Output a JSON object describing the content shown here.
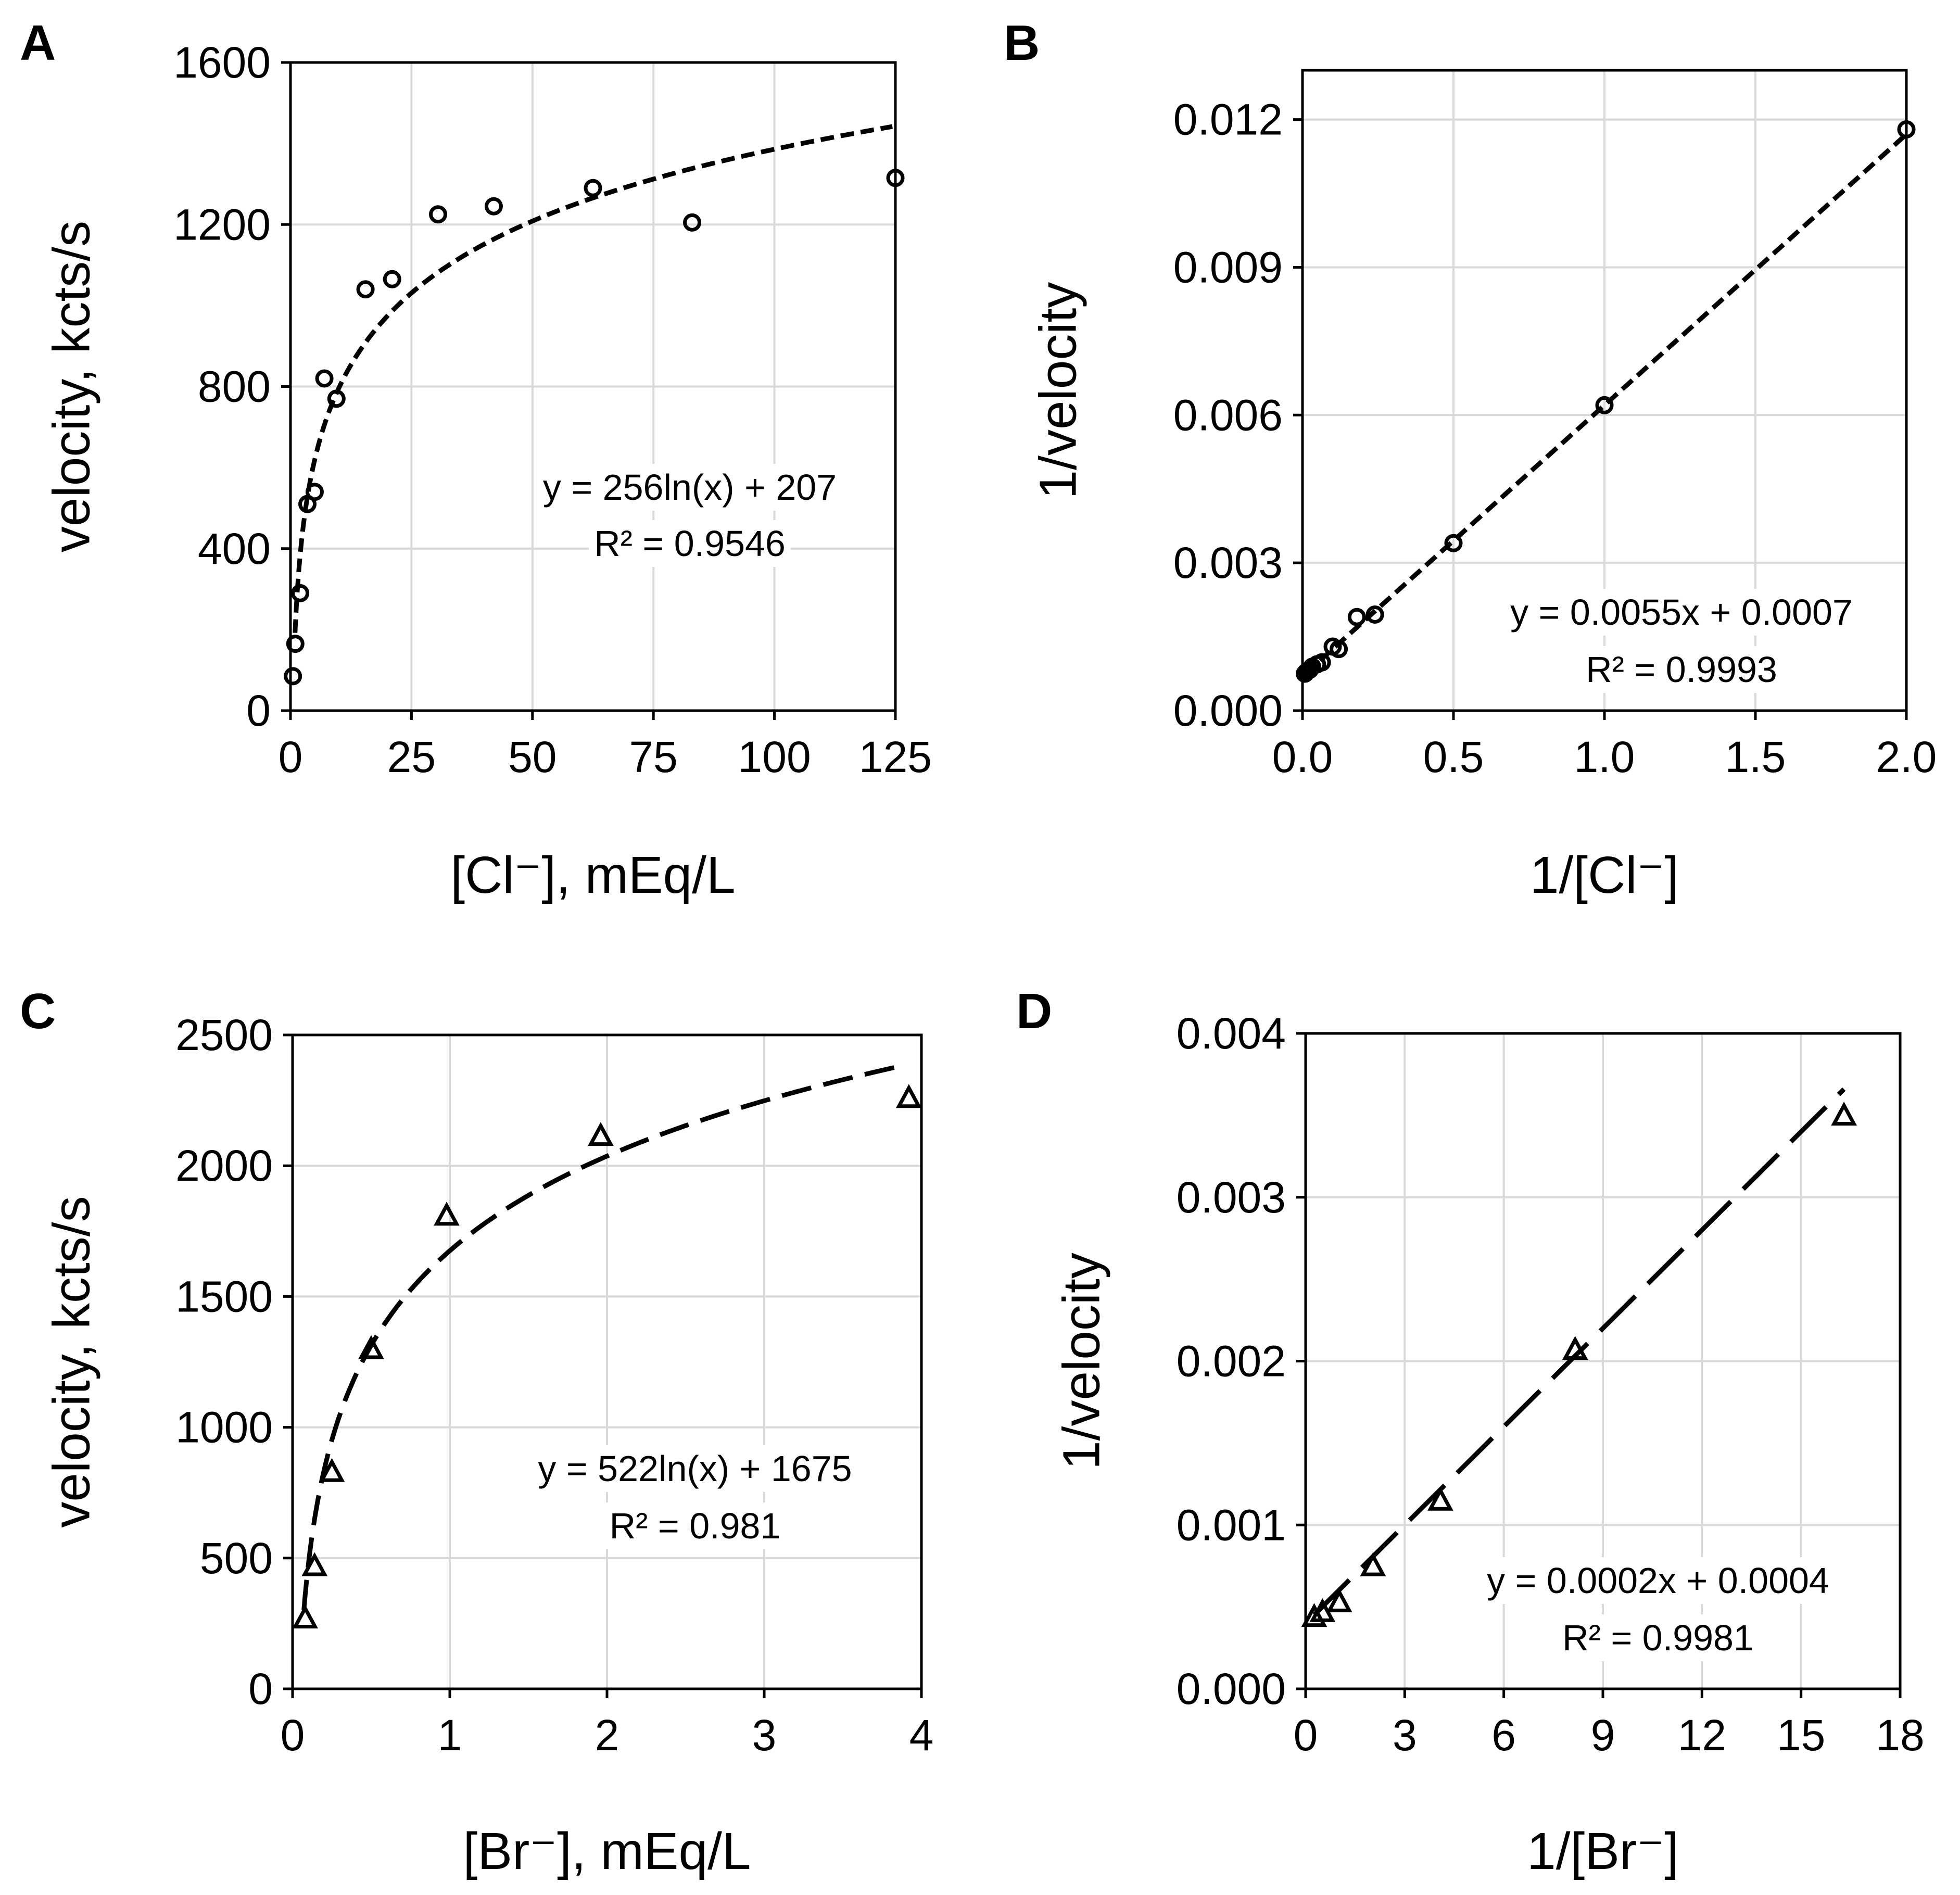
{
  "chart_data": [
    {
      "panel": "A",
      "type": "scatter",
      "marker": "circle",
      "trendline": "log-short-dash",
      "xlabel": "[Cl⁻], mEq/L",
      "ylabel": "velocity, kcts/s",
      "xlim": [
        0,
        125
      ],
      "ylim": [
        0,
        1600
      ],
      "xticks": [
        0,
        25,
        50,
        75,
        100,
        125
      ],
      "yticks": [
        0,
        400,
        800,
        1200,
        1600
      ],
      "xtick_labels": [
        "0",
        "25",
        "50",
        "75",
        "100",
        "125"
      ],
      "ytick_labels": [
        "0",
        "400",
        "800",
        "1200",
        "1600"
      ],
      "x": [
        0.5,
        1,
        2,
        3.5,
        5,
        7,
        9.5,
        15.5,
        21,
        30.5,
        42,
        62.5,
        83,
        125
      ],
      "y": [
        85,
        165,
        290,
        510,
        540,
        820,
        770,
        1040,
        1065,
        1225,
        1245,
        1290,
        1205,
        1315
      ],
      "fit": {
        "a": 256,
        "b": 207,
        "model": "log"
      },
      "equation": "y = 256ln(x)  + 207",
      "r2": "R² = 0.9546"
    },
    {
      "panel": "B",
      "type": "scatter",
      "marker": "circle",
      "trendline": "linear-short-dash",
      "xlabel": "1/[Cl⁻]",
      "ylabel": "1/velocity",
      "xlim": [
        0,
        2
      ],
      "ylim": [
        0,
        0.013
      ],
      "xticks": [
        0,
        0.5,
        1,
        1.5,
        2
      ],
      "yticks": [
        0,
        0.003,
        0.006,
        0.009,
        0.012
      ],
      "xtick_labels": [
        "0.0",
        "0.5",
        "1.0",
        "1.5",
        "2.0"
      ],
      "ytick_labels": [
        "0.000",
        "0.003",
        "0.006",
        "0.009",
        "0.012"
      ],
      "x": [
        0.008,
        0.012,
        0.016,
        0.024,
        0.032,
        0.048,
        0.064,
        0.1,
        0.12,
        0.18,
        0.24,
        0.5,
        1.0,
        2.0
      ],
      "y": [
        0.00075,
        0.00078,
        0.0008,
        0.00083,
        0.00089,
        0.00094,
        0.00098,
        0.0013,
        0.00125,
        0.0019,
        0.00195,
        0.0034,
        0.0062,
        0.0118
      ],
      "fit": {
        "m": 0.0055,
        "c": 0.0007,
        "model": "linear"
      },
      "equation": "y = 0.0055x + 0.0007",
      "r2": "R² = 0.9993"
    },
    {
      "panel": "C",
      "type": "scatter",
      "marker": "triangle",
      "trendline": "log-dash",
      "xlabel": "[Br⁻], mEq/L",
      "ylabel": "velocity, kcts/s",
      "xlim": [
        0,
        4
      ],
      "ylim": [
        0,
        2500
      ],
      "xticks": [
        0,
        1,
        2,
        3,
        4
      ],
      "yticks": [
        0,
        500,
        1000,
        1500,
        2000,
        2500
      ],
      "xtick_labels": [
        "0",
        "1",
        "2",
        "3",
        "4"
      ],
      "ytick_labels": [
        "0",
        "500",
        "1000",
        "1500",
        "2000",
        "2500"
      ],
      "x": [
        0.08,
        0.14,
        0.25,
        0.5,
        0.98,
        1.96,
        3.92
      ],
      "y": [
        270,
        470,
        830,
        1300,
        1810,
        2115,
        2260
      ],
      "fit": {
        "a": 522,
        "b": 1675,
        "model": "log"
      },
      "equation": "y = 522ln(x)  + 1675",
      "r2": "R² = 0.981"
    },
    {
      "panel": "D",
      "type": "scatter",
      "marker": "triangle",
      "trendline": "linear-long-dash",
      "xlabel": "1/[Br⁻]",
      "ylabel": "1/velocity",
      "xlim": [
        0,
        18
      ],
      "ylim": [
        0,
        0.004
      ],
      "xticks": [
        0,
        3,
        6,
        9,
        12,
        15,
        18
      ],
      "yticks": [
        0,
        0.001,
        0.002,
        0.003,
        0.004
      ],
      "xtick_labels": [
        "0",
        "3",
        "6",
        "9",
        "12",
        "15",
        "18"
      ],
      "ytick_labels": [
        "0.000",
        "0.001",
        "0.002",
        "0.003",
        "0.004"
      ],
      "x": [
        0.26,
        0.51,
        1.02,
        2.04,
        4.08,
        8.16,
        16.3
      ],
      "y": [
        0.00044,
        0.00047,
        0.00053,
        0.00075,
        0.00115,
        0.00207,
        0.0035
      ],
      "fit": {
        "m": 0.0002,
        "c": 0.0004,
        "model": "linear"
      },
      "equation": "y = 0.0002x + 0.0004",
      "r2": "R² = 0.9981"
    }
  ]
}
